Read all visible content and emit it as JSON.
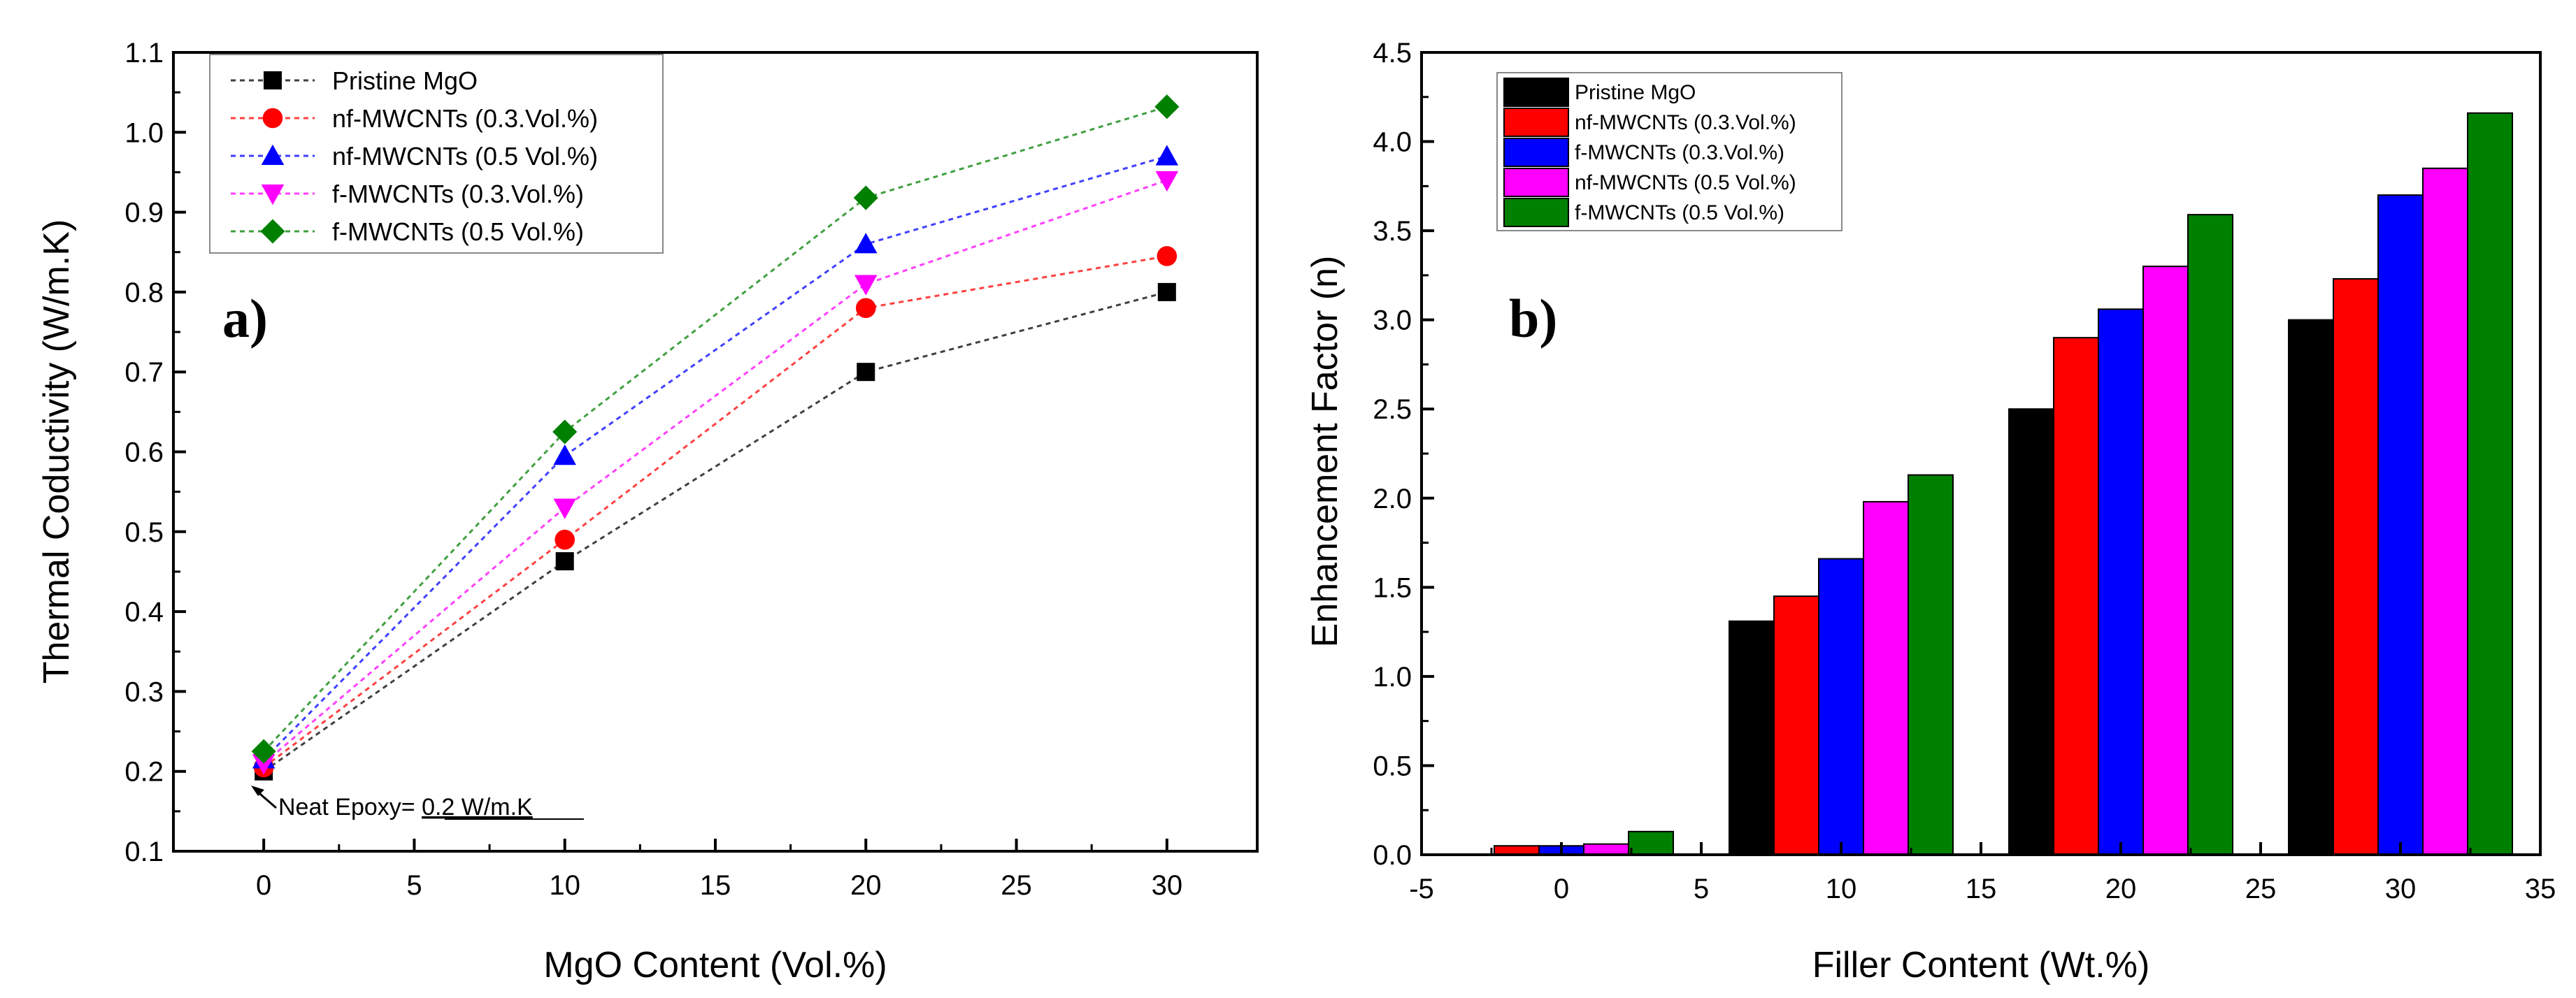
{
  "chart_data": [
    {
      "type": "line",
      "panel_label": "a)",
      "xlabel": "MgO Content (Vol.%)",
      "ylabel": "Thermal Coductivity (W/m.K)",
      "xlim": [
        -3,
        33
      ],
      "ylim": [
        0.1,
        1.1
      ],
      "xticks": [
        0,
        5,
        10,
        15,
        20,
        25,
        30
      ],
      "yticks": [
        0.1,
        0.2,
        0.3,
        0.4,
        0.5,
        0.6,
        0.7,
        0.8,
        0.9,
        1.0,
        1.1
      ],
      "ytick_labels": [
        "0.1",
        "0.2",
        "0.3",
        "0.4",
        "0.5",
        "0.6",
        "0.7",
        "0.8",
        "0.9",
        "1.0",
        "1.1"
      ],
      "x": [
        0,
        10,
        20,
        30
      ],
      "legend_position": "top-left",
      "annotation": {
        "text": "Neat Epoxy= ",
        "value": "0.2 W/m.K",
        "x": 0,
        "y": 0.2
      },
      "series": [
        {
          "name": "Pristine MgO",
          "color": "#000000",
          "marker": "square",
          "values": [
            0.2,
            0.463,
            0.7,
            0.8
          ]
        },
        {
          "name": "nf-MWCNTs (0.3.Vol.%)",
          "color": "#ff0000",
          "marker": "circle",
          "values": [
            0.205,
            0.49,
            0.78,
            0.845
          ]
        },
        {
          "name": "nf-MWCNTs (0.5 Vol.%)",
          "color": "#0000ff",
          "marker": "triangle-up",
          "values": [
            0.215,
            0.595,
            0.86,
            0.97
          ]
        },
        {
          "name": "f-MWCNTs (0.3.Vol.%)",
          "color": "#ff00ff",
          "marker": "triangle-down",
          "values": [
            0.21,
            0.53,
            0.81,
            0.94
          ]
        },
        {
          "name": "f-MWCNTs (0.5 Vol.%)",
          "color": "#008000",
          "marker": "diamond",
          "values": [
            0.225,
            0.625,
            0.918,
            1.032
          ]
        }
      ]
    },
    {
      "type": "bar",
      "panel_label": "b)",
      "xlabel": "Filler Content (Wt.%)",
      "ylabel": "Enhancement Factor (n)",
      "xlim": [
        -5,
        35
      ],
      "ylim": [
        0,
        4.5
      ],
      "xticks": [
        -5,
        0,
        5,
        10,
        15,
        20,
        25,
        30,
        35
      ],
      "yticks": [
        0,
        0.5,
        1.0,
        1.5,
        2.0,
        2.5,
        3.0,
        3.5,
        4.0,
        4.5
      ],
      "ytick_labels": [
        "0.0",
        "0.5",
        "1.0",
        "1.5",
        "2.0",
        "2.5",
        "3.0",
        "3.5",
        "4.0",
        "4.5"
      ],
      "categories": [
        0,
        10,
        20,
        30
      ],
      "bar_width": 1.6,
      "legend_position": "top-left",
      "series": [
        {
          "name": "Pristine MgO",
          "color": "#000000",
          "values": [
            0.0,
            1.31,
            2.5,
            3.0
          ]
        },
        {
          "name": "nf-MWCNTs (0.3.Vol.%)",
          "color": "#ff0000",
          "values": [
            0.05,
            1.45,
            2.9,
            3.23
          ]
        },
        {
          "name": "f-MWCNTs (0.3.Vol.%)",
          "color": "#0000ff",
          "values": [
            0.05,
            1.66,
            3.06,
            3.7
          ]
        },
        {
          "name": "nf-MWCNTs (0.5 Vol.%)",
          "color": "#ff00ff",
          "values": [
            0.06,
            1.98,
            3.3,
            3.85
          ]
        },
        {
          "name": "f-MWCNTs (0.5 Vol.%)",
          "color": "#008000",
          "values": [
            0.13,
            2.13,
            3.59,
            4.16
          ]
        }
      ]
    }
  ]
}
